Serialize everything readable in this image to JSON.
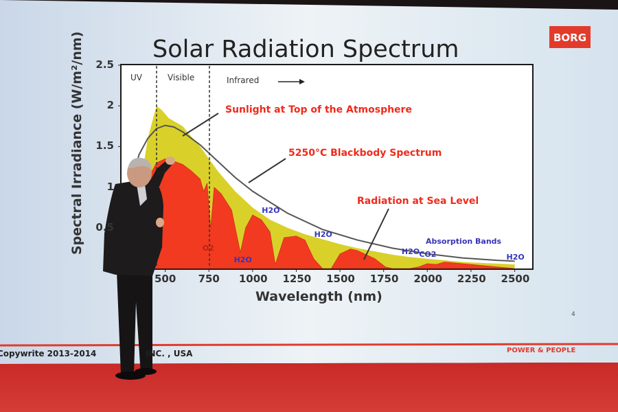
{
  "slide": {
    "title": "Solar Radiation Spectrum",
    "logo": "BORG",
    "footer_left": "Copywrite 2013-2014",
    "footer_mid": "INC. , USA",
    "footer_right": "POWER & PEOPLE",
    "page_number": "4"
  },
  "chart_data": {
    "type": "area",
    "title": "Solar Radiation Spectrum",
    "xlabel": "Wavelength (nm)",
    "ylabel": "Spectral Irradiance (W/m²/nm)",
    "xlim": [
      250,
      2600
    ],
    "ylim": [
      0,
      2.5
    ],
    "x_ticks": [
      "500",
      "750",
      "1000",
      "1250",
      "1500",
      "1750",
      "2000",
      "2250",
      "2500"
    ],
    "y_ticks": [
      "0.5",
      "1",
      "1.5",
      "2",
      "2.5"
    ],
    "regions": [
      "UV",
      "Visible",
      "Infrared"
    ],
    "annotations": {
      "top_of_atmosphere": "Sunlight at Top of the Atmosphere",
      "blackbody": "5250°C Blackbody Spectrum",
      "sea_level": "Radiation at Sea Level",
      "absorption": "Absorption Bands"
    },
    "bands": [
      {
        "label": "O2",
        "wavelength": 760
      },
      {
        "label": "H2O",
        "wavelength": 940
      },
      {
        "label": "H2O",
        "wavelength": 1100
      },
      {
        "label": "H2O",
        "wavelength": 1400
      },
      {
        "label": "H2O",
        "wavelength": 1900
      },
      {
        "label": "CO2",
        "wavelength": 2000
      },
      {
        "label": "H2O",
        "wavelength": 2500
      }
    ],
    "series": [
      {
        "name": "Sunlight at Top of the Atmosphere",
        "color": "#d9d12a",
        "x": [
          280,
          350,
          400,
          450,
          480,
          520,
          560,
          600,
          650,
          700,
          750,
          800,
          900,
          1000,
          1100,
          1200,
          1300,
          1400,
          1500,
          1600,
          1700,
          1800,
          1900,
          2000,
          2100,
          2200,
          2300,
          2400,
          2500
        ],
        "y": [
          0.2,
          0.9,
          1.6,
          2.0,
          1.95,
          1.85,
          1.8,
          1.75,
          1.62,
          1.5,
          1.35,
          1.2,
          0.95,
          0.75,
          0.6,
          0.5,
          0.42,
          0.36,
          0.3,
          0.25,
          0.21,
          0.17,
          0.14,
          0.12,
          0.1,
          0.08,
          0.07,
          0.06,
          0.05
        ]
      },
      {
        "name": "5250°C Blackbody Spectrum",
        "color": "#555555",
        "x": [
          300,
          350,
          400,
          450,
          500,
          550,
          600,
          700,
          800,
          900,
          1000,
          1200,
          1400,
          1600,
          1800,
          2000,
          2200,
          2400,
          2500
        ],
        "y": [
          1.0,
          1.4,
          1.6,
          1.72,
          1.76,
          1.74,
          1.68,
          1.52,
          1.32,
          1.12,
          0.95,
          0.68,
          0.48,
          0.35,
          0.25,
          0.18,
          0.13,
          0.1,
          0.09
        ]
      },
      {
        "name": "Radiation at Sea Level",
        "color": "#f23a20",
        "x": [
          300,
          350,
          400,
          450,
          500,
          550,
          600,
          650,
          700,
          720,
          740,
          760,
          780,
          820,
          880,
          930,
          960,
          1000,
          1050,
          1100,
          1130,
          1180,
          1250,
          1300,
          1350,
          1400,
          1450,
          1500,
          1560,
          1600,
          1700,
          1760,
          1800,
          1900,
          1950,
          2000,
          2050,
          2100,
          2200,
          2300,
          2400,
          2500
        ],
        "y": [
          0.05,
          0.6,
          1.1,
          1.3,
          1.35,
          1.32,
          1.28,
          1.2,
          1.1,
          0.95,
          1.05,
          0.5,
          1.0,
          0.92,
          0.72,
          0.2,
          0.5,
          0.66,
          0.6,
          0.45,
          0.05,
          0.38,
          0.4,
          0.35,
          0.12,
          0.0,
          0.0,
          0.18,
          0.24,
          0.22,
          0.12,
          0.02,
          0.0,
          0.0,
          0.02,
          0.06,
          0.05,
          0.08,
          0.06,
          0.04,
          0.02,
          0.0
        ]
      }
    ]
  }
}
